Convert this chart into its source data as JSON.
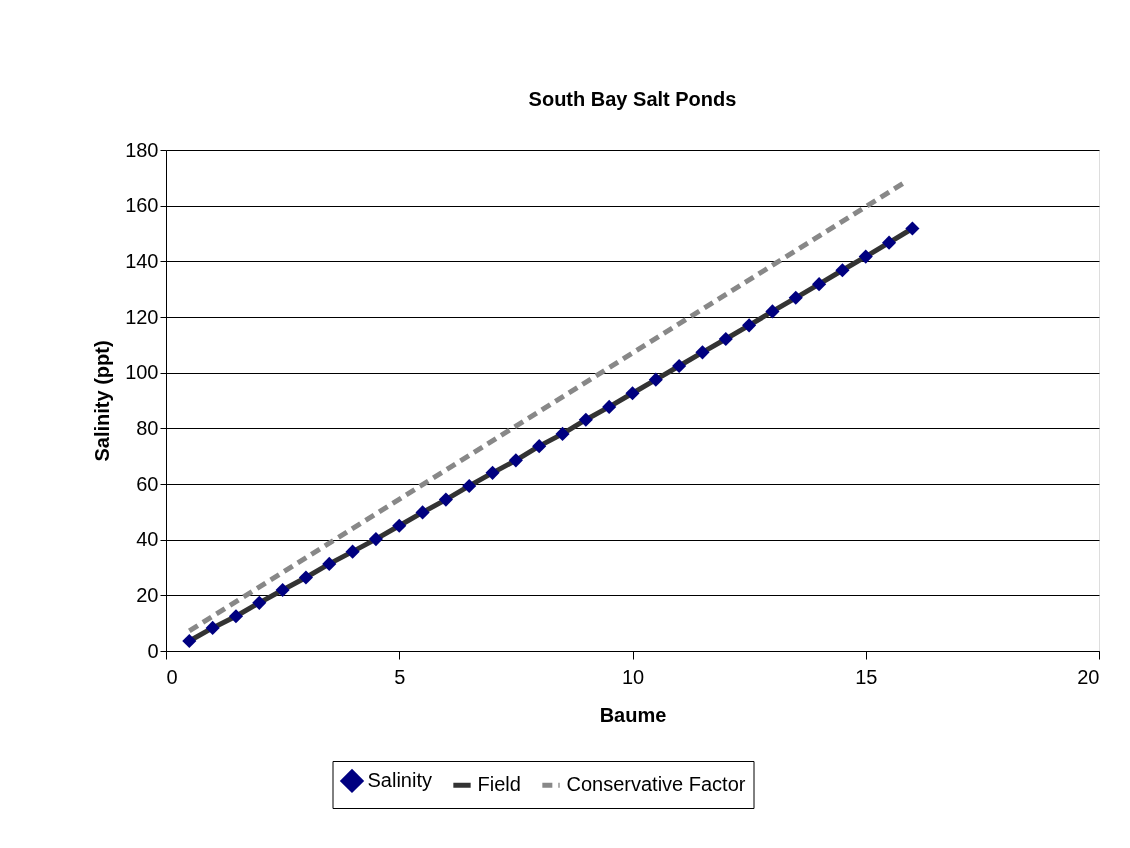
{
  "chart_data": {
    "type": "scatter",
    "title": "South Bay Salt Ponds",
    "xlabel": "Baume",
    "ylabel": "Salinity (ppt)",
    "xlim": [
      0,
      20
    ],
    "xticks": [
      0,
      5,
      10,
      15,
      20
    ],
    "ylim": [
      0,
      180
    ],
    "yticks": [
      0,
      20,
      40,
      60,
      80,
      100,
      120,
      140,
      160,
      180
    ],
    "grid": "y",
    "legend": "bottom",
    "series": [
      {
        "name": "Salinity",
        "marker": "diamond",
        "color": "#000080",
        "x": [
          0.5,
          1,
          1.5,
          2,
          2.5,
          3,
          3.5,
          4,
          4.5,
          5,
          5.5,
          6,
          6.5,
          7,
          7.5,
          8,
          8.5,
          9,
          9.5,
          10,
          10.5,
          11,
          11.5,
          12,
          12.5,
          13,
          13.5,
          14,
          14.5,
          15,
          15.5,
          16
        ],
        "values": [
          3.6,
          8.3,
          12.5,
          17.3,
          21.9,
          26.4,
          31.3,
          35.7,
          40.2,
          45,
          49.8,
          54.4,
          59.3,
          64,
          68.5,
          73.6,
          78,
          83.1,
          87.7,
          92.6,
          97.5,
          102.4,
          107.3,
          112.1,
          117,
          122,
          126.9,
          131.8,
          136.8,
          141.7,
          146.7,
          151.8
        ]
      },
      {
        "name": "Field",
        "type": "line",
        "line_style": "solid",
        "color": "#333333",
        "x": [
          0.5,
          1,
          1.5,
          2,
          2.5,
          3,
          3.5,
          4,
          4.5,
          5,
          5.5,
          6,
          6.5,
          7,
          7.5,
          8,
          8.5,
          9,
          9.5,
          10,
          10.5,
          11,
          11.5,
          12,
          12.5,
          13,
          13.5,
          14,
          14.5,
          15,
          15.5,
          16
        ],
        "values": [
          3.6,
          8.3,
          12.5,
          17.3,
          21.9,
          26.4,
          31.3,
          35.7,
          40.2,
          45,
          49.8,
          54.4,
          59.3,
          64,
          68.5,
          73.6,
          78,
          83.1,
          87.7,
          92.6,
          97.5,
          102.4,
          107.3,
          112.1,
          117,
          122,
          126.9,
          131.8,
          136.8,
          141.7,
          146.7,
          151.8
        ]
      },
      {
        "name": "Conservative Factor",
        "type": "line",
        "line_style": "dashed",
        "color": "#888888",
        "x": [
          0.5,
          15.8
        ],
        "values": [
          7.2,
          168
        ]
      }
    ]
  }
}
